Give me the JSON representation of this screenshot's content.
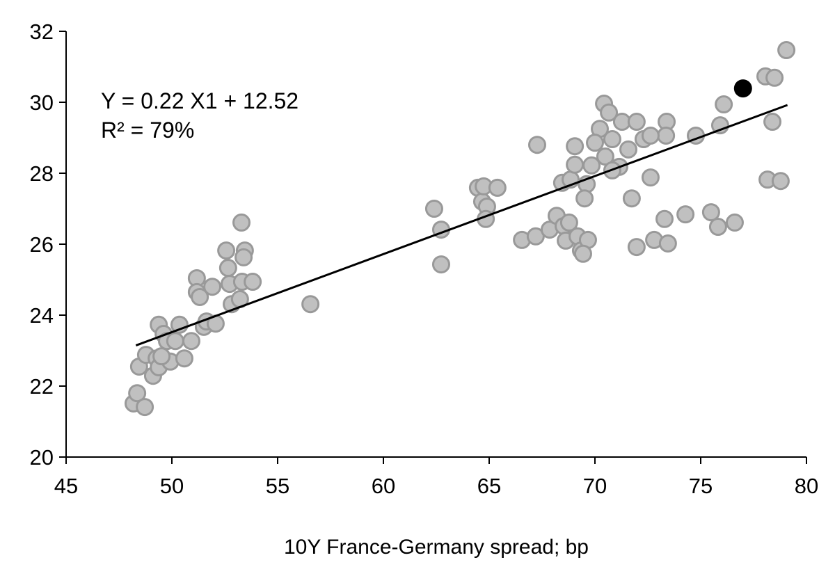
{
  "chart_data": {
    "type": "scatter",
    "title": "",
    "xlabel": "10Y France-Germany spread; bp",
    "ylabel": "",
    "xlim": [
      45,
      80
    ],
    "ylim": [
      20,
      32
    ],
    "xticks": [
      45,
      50,
      55,
      60,
      65,
      70,
      75,
      80
    ],
    "yticks": [
      20,
      22,
      24,
      26,
      28,
      30,
      32
    ],
    "grid": false,
    "annotations": [
      "Y = 0.22 X1 + 12.52",
      "R² = 79%"
    ],
    "trendline": {
      "slope": 0.22,
      "intercept": 12.52,
      "x_range": [
        48.3,
        79.1
      ]
    },
    "colors": {
      "points_fill": "#c0c0c0",
      "points_stroke": "#999999",
      "highlight": "#000000",
      "trendline": "#000000"
    },
    "highlight_point": {
      "x": 77.0,
      "y": 30.39
    },
    "points": [
      [
        48.19,
        21.51
      ],
      [
        48.36,
        21.8
      ],
      [
        48.72,
        21.41
      ],
      [
        48.45,
        22.55
      ],
      [
        48.78,
        22.88
      ],
      [
        49.38,
        23.73
      ],
      [
        49.61,
        23.47
      ],
      [
        49.77,
        23.27
      ],
      [
        49.28,
        22.78
      ],
      [
        49.11,
        22.29
      ],
      [
        49.38,
        22.53
      ],
      [
        49.93,
        22.69
      ],
      [
        50.36,
        23.73
      ],
      [
        50.16,
        23.27
      ],
      [
        50.59,
        22.78
      ],
      [
        49.51,
        22.84
      ],
      [
        50.92,
        23.27
      ],
      [
        51.18,
        25.04
      ],
      [
        51.18,
        24.65
      ],
      [
        51.32,
        24.51
      ],
      [
        51.51,
        23.67
      ],
      [
        51.64,
        23.82
      ],
      [
        51.91,
        24.8
      ],
      [
        52.07,
        23.76
      ],
      [
        52.57,
        25.82
      ],
      [
        52.66,
        25.33
      ],
      [
        52.73,
        24.88
      ],
      [
        52.83,
        24.31
      ],
      [
        53.29,
        26.61
      ],
      [
        53.45,
        25.82
      ],
      [
        53.39,
        25.63
      ],
      [
        53.32,
        24.94
      ],
      [
        53.22,
        24.45
      ],
      [
        53.82,
        24.94
      ],
      [
        56.55,
        24.31
      ],
      [
        62.4,
        27.0
      ],
      [
        62.73,
        26.41
      ],
      [
        62.73,
        25.43
      ],
      [
        64.47,
        27.59
      ],
      [
        64.67,
        27.2
      ],
      [
        64.74,
        27.63
      ],
      [
        64.9,
        27.06
      ],
      [
        64.84,
        26.71
      ],
      [
        65.39,
        27.59
      ],
      [
        67.27,
        28.8
      ],
      [
        66.55,
        26.12
      ],
      [
        67.2,
        26.22
      ],
      [
        67.86,
        26.41
      ],
      [
        68.19,
        26.8
      ],
      [
        68.52,
        26.51
      ],
      [
        68.62,
        26.1
      ],
      [
        68.78,
        26.61
      ],
      [
        69.18,
        26.22
      ],
      [
        69.34,
        25.82
      ],
      [
        69.67,
        26.12
      ],
      [
        69.44,
        25.73
      ],
      [
        68.45,
        27.73
      ],
      [
        68.85,
        27.82
      ],
      [
        69.05,
        28.76
      ],
      [
        69.05,
        28.24
      ],
      [
        69.61,
        27.69
      ],
      [
        69.51,
        27.29
      ],
      [
        69.84,
        28.22
      ],
      [
        70.23,
        29.25
      ],
      [
        70.0,
        28.86
      ],
      [
        70.43,
        29.96
      ],
      [
        70.66,
        29.71
      ],
      [
        70.82,
        28.96
      ],
      [
        71.15,
        28.18
      ],
      [
        71.28,
        29.45
      ],
      [
        71.58,
        28.67
      ],
      [
        71.74,
        27.29
      ],
      [
        71.97,
        25.92
      ],
      [
        71.97,
        29.45
      ],
      [
        72.63,
        27.88
      ],
      [
        72.8,
        26.12
      ],
      [
        73.39,
        29.45
      ],
      [
        73.36,
        29.06
      ],
      [
        73.29,
        26.71
      ],
      [
        73.45,
        26.02
      ],
      [
        74.28,
        26.84
      ],
      [
        74.77,
        29.06
      ],
      [
        75.49,
        26.9
      ],
      [
        75.82,
        26.49
      ],
      [
        76.09,
        29.94
      ],
      [
        75.92,
        29.35
      ],
      [
        76.61,
        26.61
      ],
      [
        78.06,
        30.73
      ],
      [
        78.49,
        30.69
      ],
      [
        78.39,
        29.45
      ],
      [
        78.16,
        27.82
      ],
      [
        78.78,
        27.78
      ],
      [
        79.05,
        31.47
      ],
      [
        70.49,
        28.47
      ],
      [
        70.82,
        28.08
      ],
      [
        72.3,
        28.96
      ],
      [
        72.63,
        29.06
      ]
    ]
  }
}
